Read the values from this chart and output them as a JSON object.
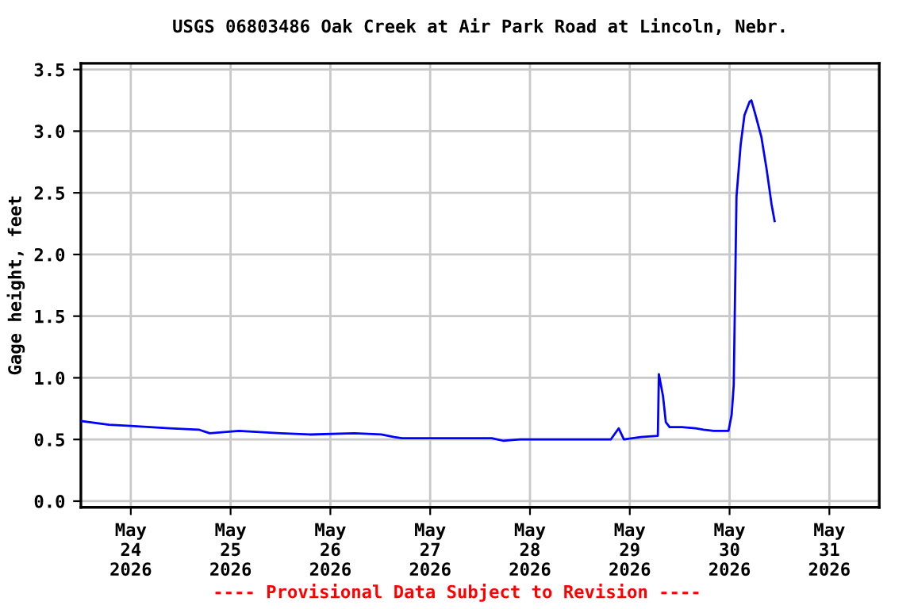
{
  "chart_data": {
    "type": "line",
    "title": "USGS 06803486 Oak Creek at Air Park Road at Lincoln, Nebr.",
    "ylabel": "Gage height, feet",
    "x": [
      "2026-05-23T12:00",
      "2026-05-23T18:45",
      "2026-05-24T00:00",
      "2026-05-24T09:20",
      "2026-05-24T16:20",
      "2026-05-24T19:00",
      "2026-05-25T02:00",
      "2026-05-25T12:00",
      "2026-05-25T19:00",
      "2026-05-26T05:45",
      "2026-05-26T12:15",
      "2026-05-26T15:20",
      "2026-05-26T17:15",
      "2026-05-27T14:50",
      "2026-05-27T17:30",
      "2026-05-27T21:35",
      "2026-05-28T16:20",
      "2026-05-28T19:25",
      "2026-05-28T21:20",
      "2026-05-28T22:35",
      "2026-05-29T02:40",
      "2026-05-29T06:45",
      "2026-05-29T07:00",
      "2026-05-29T08:00",
      "2026-05-29T08:40",
      "2026-05-29T09:35",
      "2026-05-29T12:30",
      "2026-05-29T15:50",
      "2026-05-29T17:45",
      "2026-05-29T20:10",
      "2026-05-29T23:45",
      "2026-05-30T00:30",
      "2026-05-30T01:00",
      "2026-05-30T01:20",
      "2026-05-30T01:40",
      "2026-05-30T02:40",
      "2026-05-30T03:35",
      "2026-05-30T04:50",
      "2026-05-30T05:15",
      "2026-05-30T06:15",
      "2026-05-30T07:40",
      "2026-05-30T08:55",
      "2026-05-30T10:05",
      "2026-05-30T10:50"
    ],
    "series": [
      {
        "color": "#0000ff",
        "values": [
          0.65,
          0.62,
          0.61,
          0.59,
          0.58,
          0.55,
          0.57,
          0.55,
          0.54,
          0.55,
          0.54,
          0.52,
          0.51,
          0.51,
          0.49,
          0.5,
          0.5,
          0.5,
          0.59,
          0.5,
          0.52,
          0.53,
          1.03,
          0.85,
          0.64,
          0.6,
          0.6,
          0.59,
          0.58,
          0.57,
          0.57,
          0.7,
          0.94,
          1.71,
          2.47,
          2.89,
          3.13,
          3.24,
          3.25,
          3.13,
          2.95,
          2.69,
          2.41,
          2.27
        ]
      }
    ],
    "xlim": [
      "2026-05-23T12:00",
      "2026-05-31T12:00"
    ],
    "xticks": [
      {
        "value": "2026-05-24",
        "label": "May\n24\n2026"
      },
      {
        "value": "2026-05-25",
        "label": "May\n25\n2026"
      },
      {
        "value": "2026-05-26",
        "label": "May\n26\n2026"
      },
      {
        "value": "2026-05-27",
        "label": "May\n27\n2026"
      },
      {
        "value": "2026-05-28",
        "label": "May\n28\n2026"
      },
      {
        "value": "2026-05-29",
        "label": "May\n29\n2026"
      },
      {
        "value": "2026-05-30",
        "label": "May\n30\n2026"
      },
      {
        "value": "2026-05-31",
        "label": "May\n31\n2026"
      }
    ],
    "ylim": [
      -0.05,
      3.55
    ],
    "yticks": [
      {
        "value": 0,
        "label": "0.0"
      },
      {
        "value": 0.5,
        "label": "0.5"
      },
      {
        "value": 1,
        "label": "1.0"
      },
      {
        "value": 1.5,
        "label": "1.5"
      },
      {
        "value": 2,
        "label": "2.0"
      },
      {
        "value": 2.5,
        "label": "2.5"
      },
      {
        "value": 3,
        "label": "3.0"
      },
      {
        "value": 3.5,
        "label": "3.5"
      }
    ],
    "grid": true,
    "legend": false,
    "annotations": [
      "---- Provisional Data Subject to Revision ----"
    ]
  }
}
